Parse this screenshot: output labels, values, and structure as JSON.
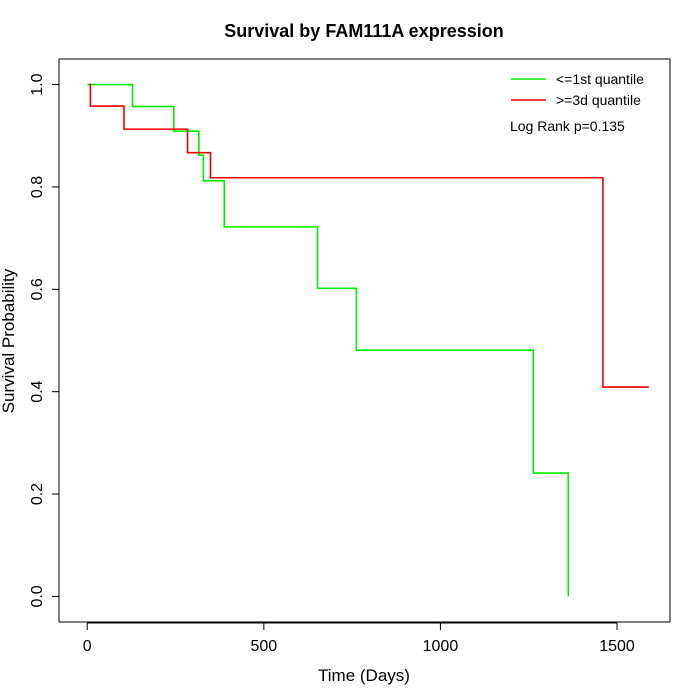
{
  "chart_data": {
    "type": "line",
    "step": true,
    "title": "Survival by FAM111A expression",
    "xlabel": "Time (Days)",
    "ylabel": "Survival Probability",
    "xlim": [
      -80,
      1650
    ],
    "ylim": [
      -0.05,
      1.05
    ],
    "xticks": [
      0,
      500,
      1000,
      1500
    ],
    "yticks": [
      0.0,
      0.2,
      0.4,
      0.6,
      0.8,
      1.0
    ],
    "xtick_labels": [
      "0",
      "500",
      "1000",
      "1500"
    ],
    "ytick_labels": [
      "0.0",
      "0.2",
      "0.4",
      "0.6",
      "0.8",
      "1.0"
    ],
    "grid": false,
    "legend_position": "top-right",
    "annotation": "Log Rank p=0.135",
    "series": [
      {
        "name": "<=1st quantile",
        "color": "#00ee00",
        "points": [
          [
            0,
            1.0
          ],
          [
            128,
            1.0
          ],
          [
            128,
            0.957
          ],
          [
            245,
            0.957
          ],
          [
            245,
            0.909
          ],
          [
            316,
            0.909
          ],
          [
            316,
            0.862
          ],
          [
            329,
            0.862
          ],
          [
            329,
            0.812
          ],
          [
            388,
            0.812
          ],
          [
            388,
            0.722
          ],
          [
            652,
            0.722
          ],
          [
            652,
            0.602
          ],
          [
            762,
            0.602
          ],
          [
            762,
            0.481
          ],
          [
            1263,
            0.481
          ],
          [
            1263,
            0.241
          ],
          [
            1362,
            0.241
          ],
          [
            1362,
            0.0
          ]
        ]
      },
      {
        "name": ">=3d quantile",
        "color": "#ee0000",
        "points": [
          [
            5,
            1.0
          ],
          [
            9,
            1.0
          ],
          [
            9,
            0.958
          ],
          [
            104,
            0.958
          ],
          [
            104,
            0.913
          ],
          [
            284,
            0.913
          ],
          [
            284,
            0.867
          ],
          [
            349,
            0.867
          ],
          [
            349,
            0.818
          ],
          [
            1460,
            0.818
          ],
          [
            1460,
            0.409
          ],
          [
            1590,
            0.409
          ]
        ]
      }
    ]
  }
}
